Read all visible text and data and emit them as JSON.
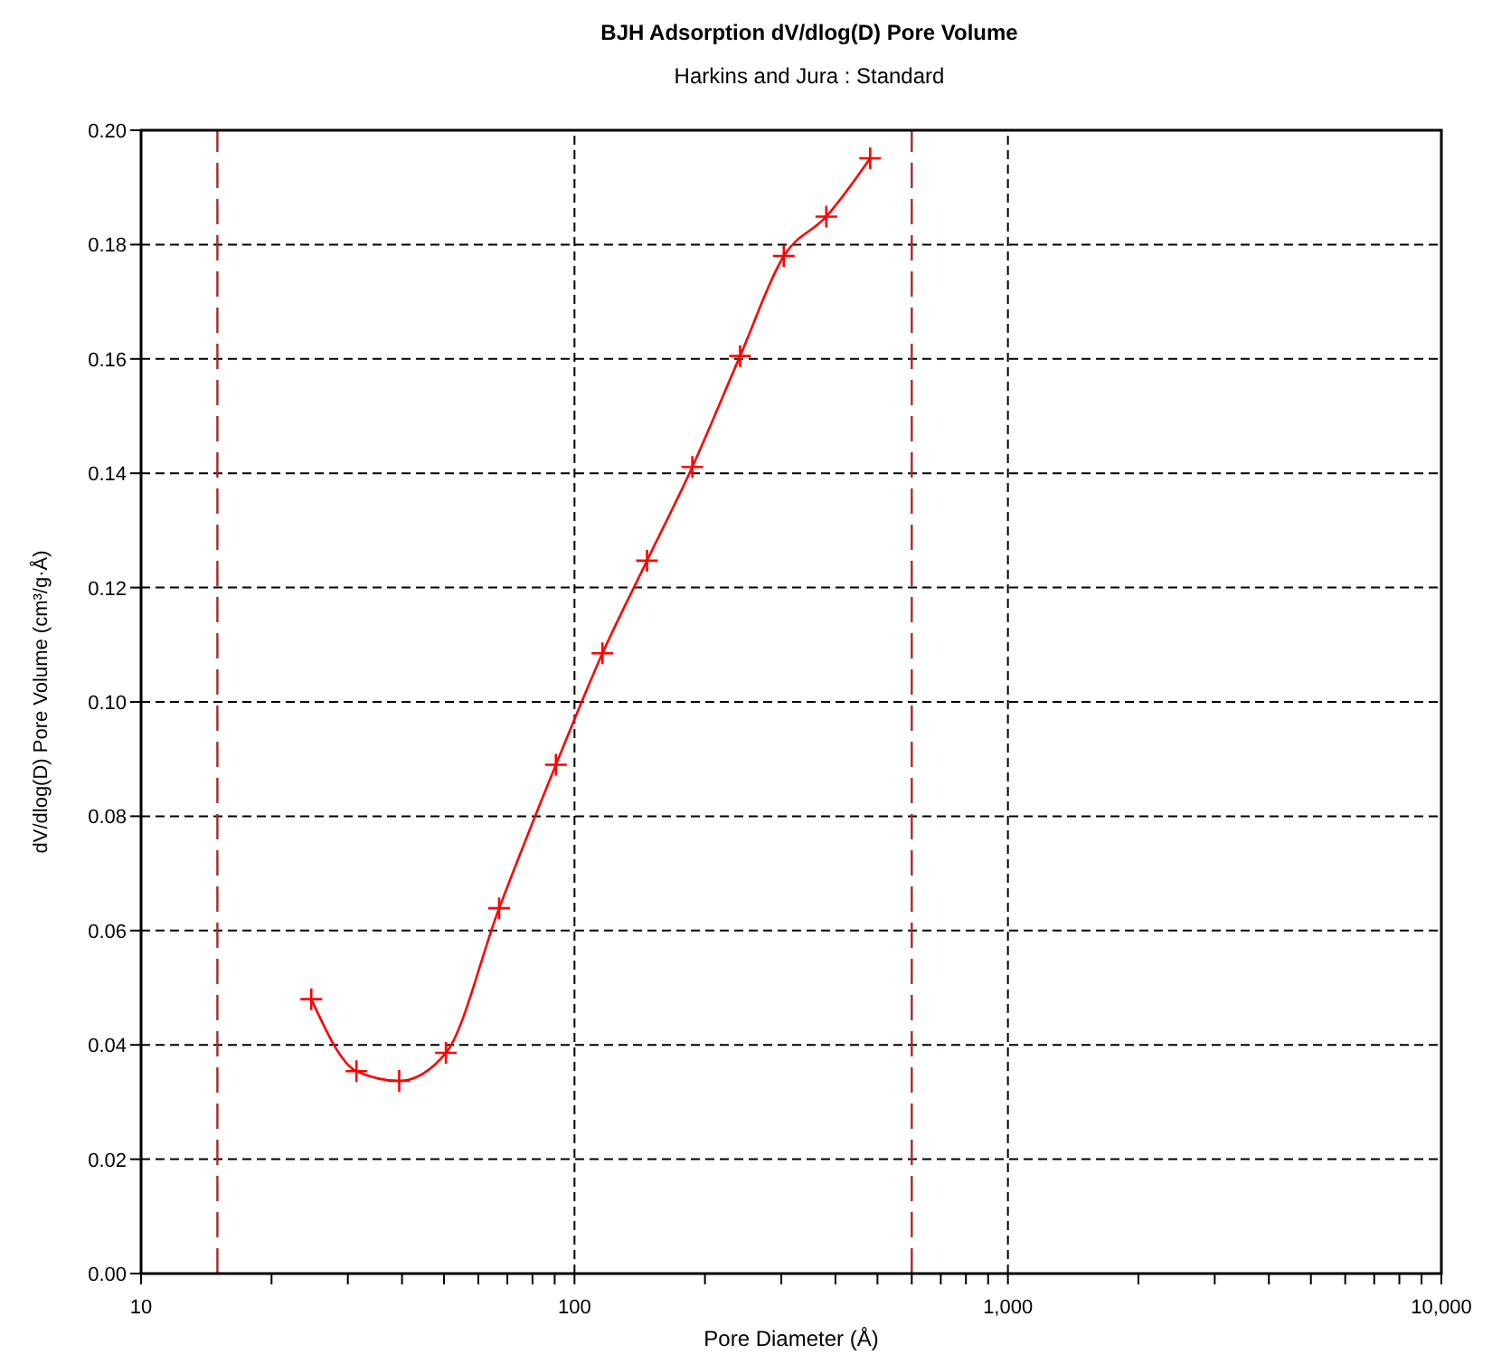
{
  "chart_data": {
    "type": "line",
    "title": "BJH Adsorption dV/dlog(D) Pore Volume",
    "subtitle": "Harkins and Jura : Standard",
    "xlabel": "Pore Diameter (Å)",
    "ylabel": "dV/dlog(D) Pore Volume (cm³/g·Å)",
    "log": "x",
    "grid": true,
    "marker": "cross",
    "line_style": "solid",
    "xlim": [
      10,
      10000
    ],
    "ylim": [
      0,
      0.2
    ],
    "xticks": [
      10,
      {
        "value": 20,
        "label": null
      },
      {
        "value": 30,
        "label": null
      },
      {
        "value": 40,
        "label": null
      },
      {
        "value": 50,
        "label": null
      },
      {
        "value": 60,
        "label": null
      },
      {
        "value": 70,
        "label": null
      },
      {
        "value": 80,
        "label": null
      },
      {
        "value": 90,
        "label": null
      },
      100,
      {
        "value": 200,
        "label": null
      },
      {
        "value": 300,
        "label": null
      },
      {
        "value": 400,
        "label": null
      },
      {
        "value": 500,
        "label": null
      },
      {
        "value": 600,
        "label": null
      },
      {
        "value": 700,
        "label": null
      },
      {
        "value": 800,
        "label": null
      },
      {
        "value": 900,
        "label": null
      },
      {
        "value": 1000,
        "label": "1,000"
      },
      {
        "value": 2000,
        "label": null
      },
      {
        "value": 3000,
        "label": null
      },
      {
        "value": 4000,
        "label": null
      },
      {
        "value": 5000,
        "label": null
      },
      {
        "value": 6000,
        "label": null
      },
      {
        "value": 7000,
        "label": null
      },
      {
        "value": 8000,
        "label": null
      },
      {
        "value": 9000,
        "label": null
      },
      {
        "value": 10000,
        "label": "10,000"
      }
    ],
    "yticks": [
      {
        "value": 0,
        "label": "0.00"
      },
      {
        "value": 0.02,
        "label": "0.02"
      },
      {
        "value": 0.04,
        "label": "0.04"
      },
      {
        "value": 0.06,
        "label": "0.06"
      },
      {
        "value": 0.08,
        "label": "0.08"
      },
      {
        "value": 0.1,
        "label": "0.10"
      },
      {
        "value": 0.12,
        "label": "0.12"
      },
      {
        "value": 0.14,
        "label": "0.14"
      },
      {
        "value": 0.16,
        "label": "0.16"
      },
      {
        "value": 0.18,
        "label": "0.18"
      },
      {
        "value": 0.2,
        "label": "0.20"
      }
    ],
    "ref_lines": [
      {
        "axis": "x",
        "value": 15,
        "color": "#a52a2a",
        "line_style": "dashed"
      },
      {
        "axis": "x",
        "value": 600,
        "color": "#a52a2a",
        "line_style": "dashed"
      }
    ],
    "series": [
      {
        "color": "#ff0000",
        "x": [
          24.7,
          31.4,
          39.4,
          50.5,
          67,
          90.6,
          116,
          147,
          187,
          241,
          304,
          381,
          481
        ],
        "values": [
          0.048,
          0.0354,
          0.0337,
          0.0386,
          0.0639,
          0.089,
          0.1085,
          0.1247,
          0.1411,
          0.1605,
          0.178,
          0.1849,
          0.1951
        ]
      }
    ]
  }
}
